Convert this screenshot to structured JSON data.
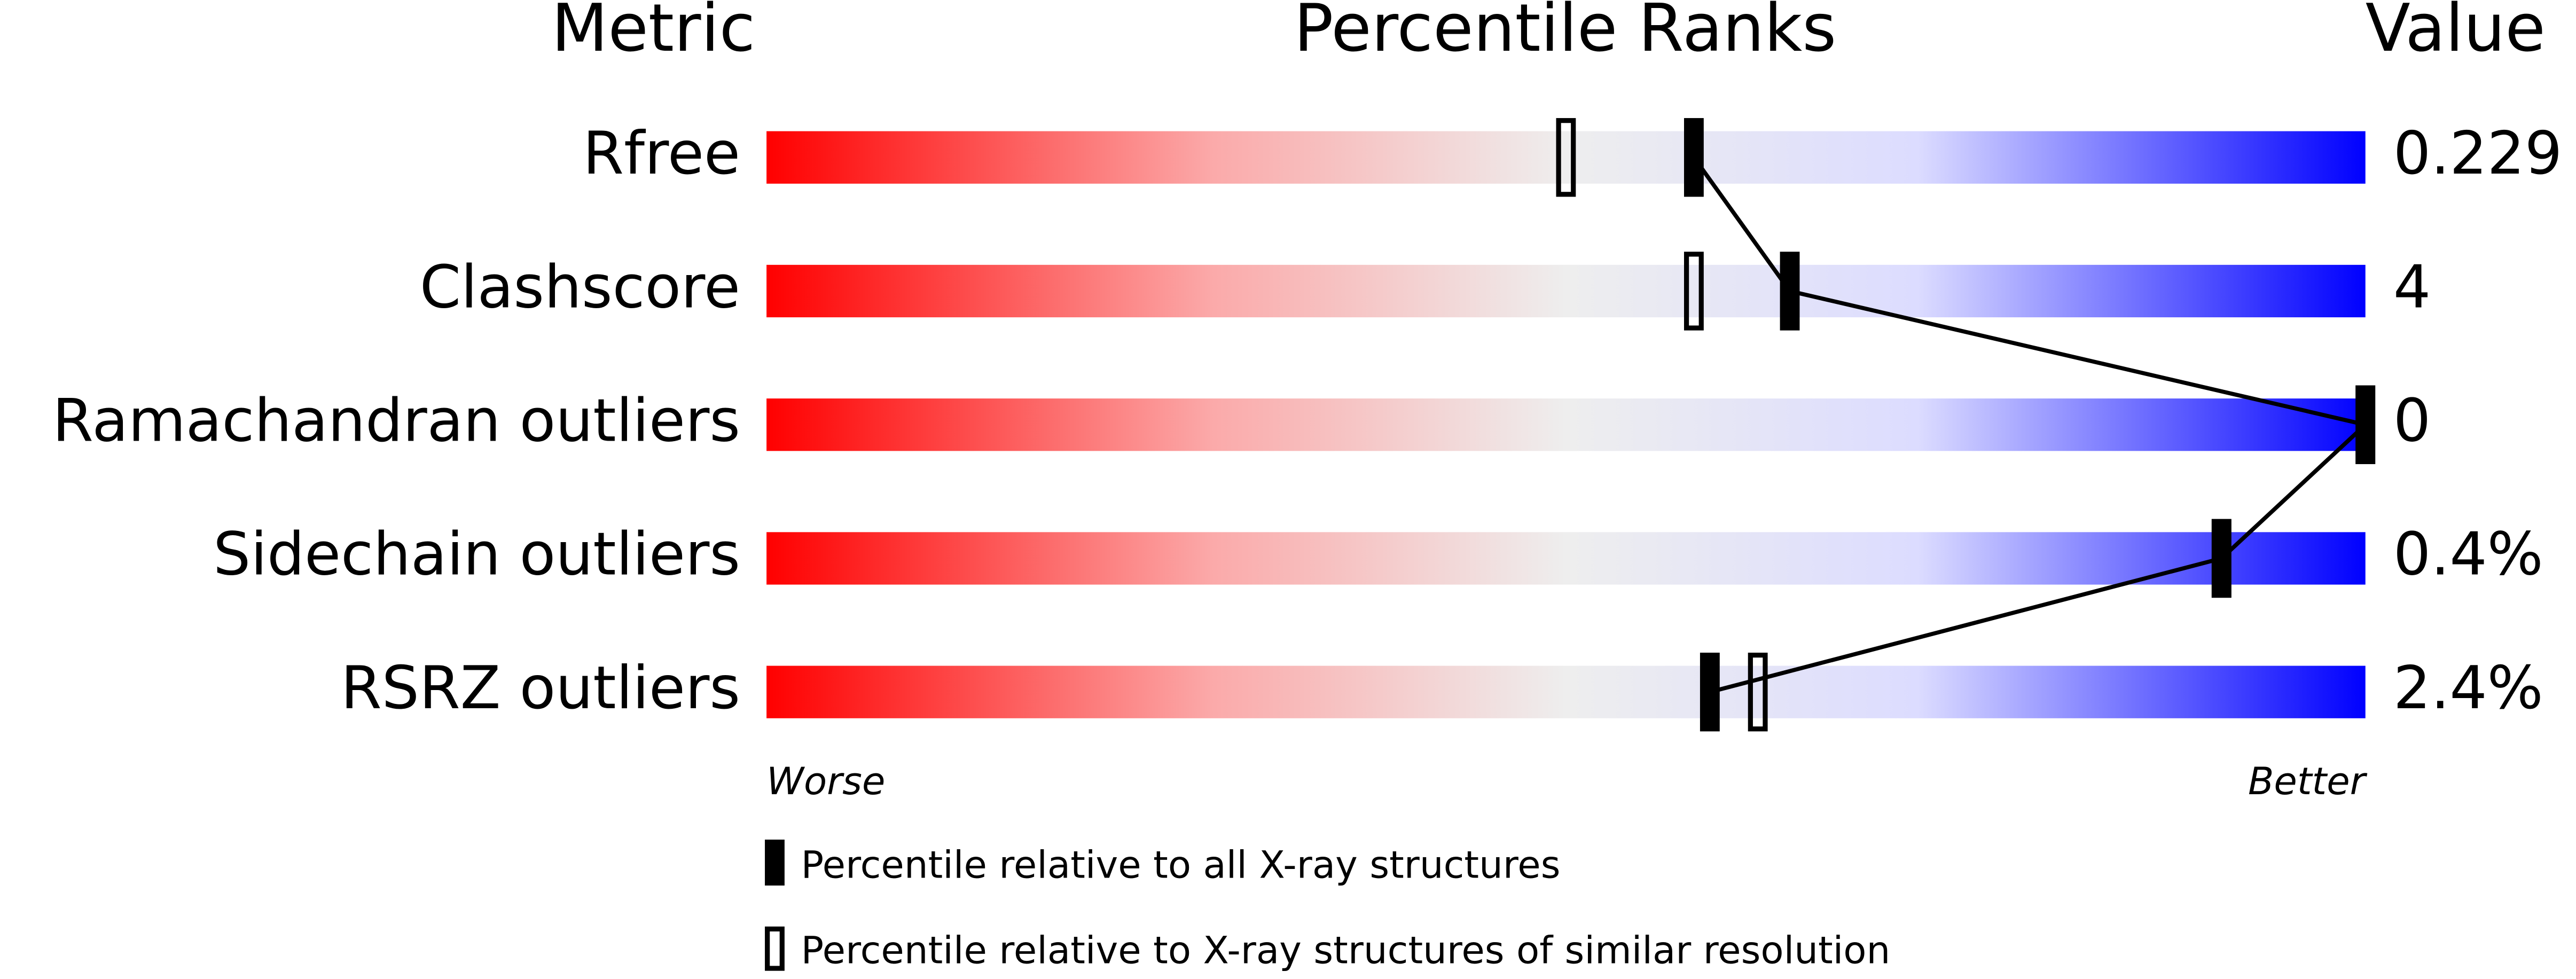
{
  "chart_data": {
    "type": "percentile-slider",
    "headers": [
      "Metric",
      "Percentile Ranks",
      "Value"
    ],
    "categories": [
      "Rfree",
      "Clashscore",
      "Ramachandran outliers",
      "Sidechain outliers",
      "RSRZ outliers"
    ],
    "value_column": [
      "0.229",
      "4",
      "0",
      "0.4%",
      "2.4%"
    ],
    "xlim": [
      0,
      100
    ],
    "axis_labels": [
      "Worse",
      "Better"
    ],
    "series": [
      {
        "name": "Percentile relative to all X-ray structures",
        "color": "#000000",
        "style": "filled",
        "values": [
          58,
          64,
          100,
          91,
          59
        ]
      },
      {
        "name": "Percentile relative to X-ray structures of similar resolution",
        "color": "#000000",
        "style": "open",
        "values": [
          50,
          58,
          100,
          91,
          62
        ]
      }
    ]
  }
}
